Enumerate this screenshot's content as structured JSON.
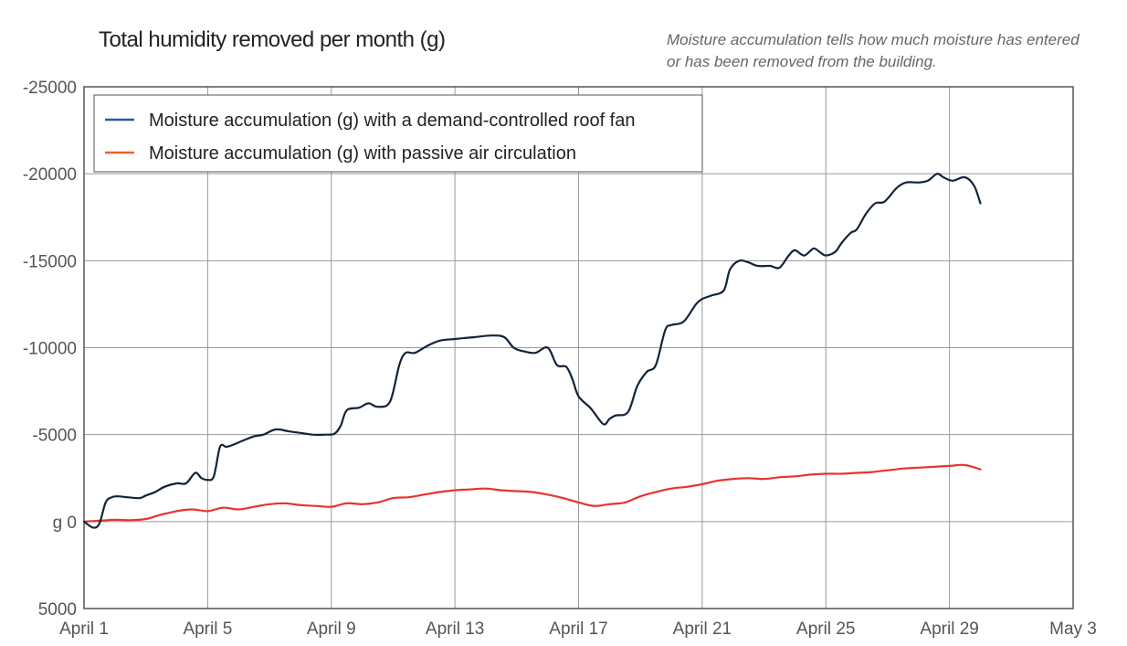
{
  "chart_data": {
    "type": "line",
    "title": "Total humidity removed per month (g)",
    "subtitle": "Moisture accumulation tells how much moisture has entered or has been removed from the building.",
    "xlabel": "",
    "ylabel": "",
    "x_ticks": [
      "April 1",
      "April 5",
      "April 9",
      "April 13",
      "April 17",
      "April 21",
      "April 25",
      "April 29",
      "May 3"
    ],
    "x_range_days": [
      1,
      33
    ],
    "y_ticks": [
      "-25000",
      "-20000",
      "-15000",
      "-10000",
      "-5000",
      "g 0",
      "5000"
    ],
    "y_tick_values": [
      -25000,
      -20000,
      -15000,
      -10000,
      -5000,
      0,
      5000
    ],
    "ylim": [
      -25000,
      5000
    ],
    "y_inverted": true,
    "grid": true,
    "legend_position": "top-left",
    "series": [
      {
        "name": "Moisture accumulation (g) with a demand-controlled roof fan",
        "legend_color": "#2a5aa8",
        "line_color": "#13233a",
        "x": [
          1,
          1.3,
          1.5,
          1.7,
          1.9,
          2.1,
          2.4,
          2.8,
          3.0,
          3.3,
          3.6,
          4.0,
          4.3,
          4.6,
          4.8,
          5.0,
          5.2,
          5.4,
          5.6,
          5.8,
          6.2,
          6.5,
          6.8,
          7.2,
          7.6,
          8.0,
          8.4,
          8.8,
          9.1,
          9.3,
          9.5,
          9.9,
          10.2,
          10.5,
          10.9,
          11.2,
          11.4,
          11.7,
          12.1,
          12.5,
          13.0,
          13.6,
          14.2,
          14.6,
          14.9,
          15.2,
          15.6,
          16.0,
          16.3,
          16.6,
          16.8,
          17.0,
          17.4,
          17.8,
          18.0,
          18.2,
          18.6,
          18.9,
          19.2,
          19.5,
          19.8,
          20.0,
          20.4,
          20.8,
          21.0,
          21.3,
          21.7,
          21.9,
          22.2,
          22.5,
          22.8,
          23.2,
          23.5,
          23.8,
          24.0,
          24.3,
          24.6,
          24.8,
          25.0,
          25.3,
          25.5,
          25.8,
          26.0,
          26.3,
          26.6,
          26.9,
          27.3,
          27.6,
          28.0,
          28.3,
          28.6,
          28.8,
          29.1,
          29.5,
          29.8,
          30.0
        ],
        "values": [
          0,
          350,
          100,
          -1100,
          -1400,
          -1450,
          -1400,
          -1350,
          -1500,
          -1700,
          -2000,
          -2200,
          -2200,
          -2800,
          -2500,
          -2400,
          -2600,
          -4300,
          -4300,
          -4400,
          -4700,
          -4900,
          -5000,
          -5300,
          -5200,
          -5100,
          -5000,
          -5000,
          -5050,
          -5500,
          -6400,
          -6550,
          -6800,
          -6600,
          -6900,
          -9000,
          -9700,
          -9700,
          -10100,
          -10400,
          -10500,
          -10600,
          -10700,
          -10600,
          -10000,
          -9800,
          -9700,
          -10000,
          -9000,
          -8900,
          -8200,
          -7200,
          -6500,
          -5600,
          -5900,
          -6100,
          -6300,
          -7800,
          -8600,
          -9000,
          -11000,
          -11300,
          -11500,
          -12500,
          -12800,
          -13000,
          -13300,
          -14500,
          -15000,
          -14900,
          -14700,
          -14700,
          -14600,
          -15300,
          -15600,
          -15300,
          -15700,
          -15500,
          -15300,
          -15500,
          -16000,
          -16600,
          -16800,
          -17700,
          -18300,
          -18400,
          -19200,
          -19500,
          -19500,
          -19600,
          -20000,
          -19800,
          -19600,
          -19800,
          -19300,
          -18300
        ]
      },
      {
        "name": "Moisture accumulation (g) with passive air circulation",
        "legend_color": "#e8642a",
        "line_color": "#e8332e",
        "x": [
          1,
          1.5,
          2.0,
          2.5,
          3.0,
          3.5,
          4.0,
          4.5,
          5.0,
          5.5,
          6.0,
          6.5,
          7.0,
          7.5,
          8.0,
          8.5,
          9.0,
          9.5,
          10.0,
          10.5,
          11.0,
          11.5,
          12.0,
          12.5,
          13.0,
          13.5,
          14.0,
          14.5,
          15.0,
          15.5,
          16.0,
          16.5,
          17.0,
          17.5,
          18.0,
          18.5,
          19.0,
          19.5,
          20.0,
          20.5,
          21.0,
          21.5,
          22.0,
          22.5,
          23.0,
          23.5,
          24.0,
          24.5,
          25.0,
          25.5,
          26.0,
          26.5,
          27.0,
          27.5,
          28.0,
          28.5,
          29.0,
          29.5,
          30.0
        ],
        "values": [
          0,
          -50,
          -100,
          -80,
          -150,
          -400,
          -600,
          -700,
          -600,
          -800,
          -700,
          -850,
          -1000,
          -1050,
          -950,
          -900,
          -850,
          -1050,
          -1000,
          -1100,
          -1350,
          -1400,
          -1550,
          -1700,
          -1800,
          -1850,
          -1900,
          -1800,
          -1750,
          -1700,
          -1550,
          -1350,
          -1100,
          -900,
          -1000,
          -1100,
          -1450,
          -1700,
          -1900,
          -2000,
          -2150,
          -2350,
          -2450,
          -2500,
          -2450,
          -2550,
          -2600,
          -2700,
          -2750,
          -2750,
          -2800,
          -2850,
          -2950,
          -3050,
          -3100,
          -3150,
          -3200,
          -3250,
          -3000
        ]
      }
    ]
  }
}
